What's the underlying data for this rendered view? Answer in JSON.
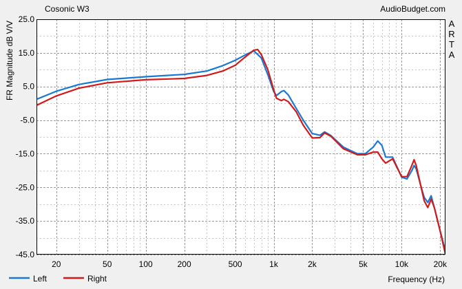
{
  "chart_data": {
    "type": "line",
    "title": "Cosonic W3",
    "watermark": "AudioBudget.com",
    "side_label": "ARTA",
    "xlabel": "Frequency (Hz)",
    "ylabel": "FR Magnitude dB V/V",
    "x_scale": "log",
    "xlim": [
      14,
      22000
    ],
    "ylim": [
      -45,
      25
    ],
    "y_ticks": [
      25.0,
      15.0,
      5.0,
      -5.0,
      -15.0,
      -25.0,
      -35.0,
      -45.0
    ],
    "y_tick_labels": [
      "25.0",
      "15.0",
      "5.0",
      "-5.0",
      "-15.0",
      "-25.0",
      "-35.0",
      "-45.0"
    ],
    "x_ticks": [
      20,
      50,
      100,
      200,
      500,
      1000,
      2000,
      5000,
      10000,
      20000
    ],
    "x_tick_labels": [
      "20",
      "50",
      "100",
      "200",
      "500",
      "1k",
      "2k",
      "5k",
      "10k",
      "20k"
    ],
    "grid": true,
    "legend_position": "bottom-left",
    "series": [
      {
        "name": "Left",
        "color": "#1a78d2",
        "points": [
          [
            14,
            1.2
          ],
          [
            20,
            3.6
          ],
          [
            30,
            5.6
          ],
          [
            50,
            7.1
          ],
          [
            100,
            7.9
          ],
          [
            200,
            8.6
          ],
          [
            300,
            9.6
          ],
          [
            400,
            11.2
          ],
          [
            500,
            12.8
          ],
          [
            600,
            14.4
          ],
          [
            700,
            15.6
          ],
          [
            800,
            13.5
          ],
          [
            900,
            8.5
          ],
          [
            1000,
            3.5
          ],
          [
            1050,
            2.3
          ],
          [
            1150,
            3.5
          ],
          [
            1200,
            3.8
          ],
          [
            1300,
            2.5
          ],
          [
            1500,
            -1.5
          ],
          [
            1700,
            -5
          ],
          [
            2000,
            -9
          ],
          [
            2300,
            -9.5
          ],
          [
            2500,
            -8.5
          ],
          [
            2800,
            -9.6
          ],
          [
            3500,
            -13
          ],
          [
            4500,
            -15
          ],
          [
            5200,
            -15
          ],
          [
            6000,
            -13
          ],
          [
            6500,
            -11.2
          ],
          [
            7000,
            -12.5
          ],
          [
            7500,
            -16
          ],
          [
            8500,
            -16
          ],
          [
            10000,
            -22
          ],
          [
            11000,
            -22.5
          ],
          [
            12000,
            -20
          ],
          [
            12500,
            -18.5
          ],
          [
            13000,
            -19.5
          ],
          [
            14000,
            -24
          ],
          [
            15000,
            -28
          ],
          [
            16000,
            -29.5
          ],
          [
            17000,
            -27.5
          ],
          [
            18000,
            -31
          ],
          [
            20000,
            -38
          ],
          [
            22000,
            -44
          ]
        ]
      },
      {
        "name": "Right",
        "color": "#d11a1a",
        "points": [
          [
            14,
            -0.6
          ],
          [
            20,
            2.2
          ],
          [
            30,
            4.5
          ],
          [
            50,
            6.1
          ],
          [
            100,
            7.0
          ],
          [
            200,
            7.4
          ],
          [
            300,
            8.3
          ],
          [
            400,
            9.6
          ],
          [
            500,
            11.3
          ],
          [
            600,
            13.8
          ],
          [
            700,
            15.8
          ],
          [
            750,
            16.0
          ],
          [
            800,
            14.5
          ],
          [
            900,
            10.0
          ],
          [
            1000,
            4.0
          ],
          [
            1050,
            1.5
          ],
          [
            1150,
            0.8
          ],
          [
            1200,
            1.2
          ],
          [
            1300,
            0.5
          ],
          [
            1500,
            -2.5
          ],
          [
            1700,
            -6.5
          ],
          [
            2000,
            -10.3
          ],
          [
            2300,
            -10.2
          ],
          [
            2500,
            -8.8
          ],
          [
            2800,
            -9.8
          ],
          [
            3500,
            -13.5
          ],
          [
            4500,
            -15.3
          ],
          [
            5200,
            -15.3
          ],
          [
            6000,
            -14.5
          ],
          [
            6500,
            -14.5
          ],
          [
            7000,
            -16.5
          ],
          [
            7500,
            -17.8
          ],
          [
            8500,
            -16.5
          ],
          [
            10000,
            -21.8
          ],
          [
            11000,
            -21.8
          ],
          [
            12000,
            -18.5
          ],
          [
            12500,
            -16.8
          ],
          [
            13000,
            -18.5
          ],
          [
            14000,
            -24
          ],
          [
            15000,
            -29
          ],
          [
            16000,
            -31
          ],
          [
            17000,
            -28.5
          ],
          [
            18000,
            -31
          ],
          [
            20000,
            -38
          ],
          [
            22000,
            -45
          ]
        ]
      }
    ]
  }
}
